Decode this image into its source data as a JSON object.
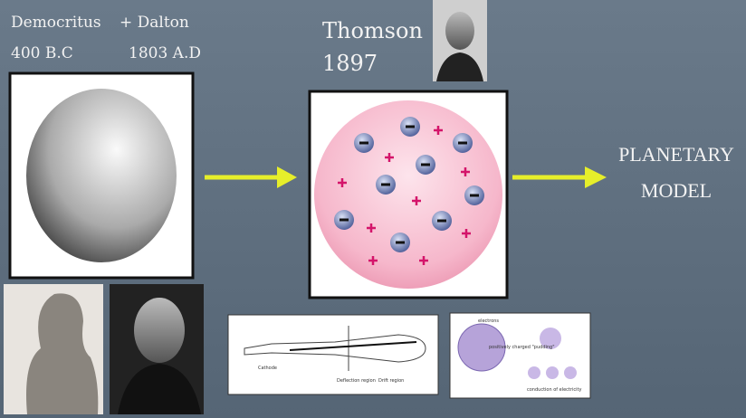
{
  "slide": {
    "democritus": {
      "name": "Democritus",
      "date": "400 B.C"
    },
    "dalton": {
      "name": "+ Dalton",
      "date": "1803 A.D"
    },
    "thomson": {
      "name": "Thomson",
      "date": "1897"
    },
    "planetary": {
      "line1": "PLANETARY",
      "line2": "MODEL"
    },
    "tube_labels": [
      "Cathode",
      "Deflection region",
      "Drift region"
    ],
    "pudding_labels": [
      "electrons",
      "positively charged \"pudding\"",
      "conduction of electricity"
    ]
  }
}
